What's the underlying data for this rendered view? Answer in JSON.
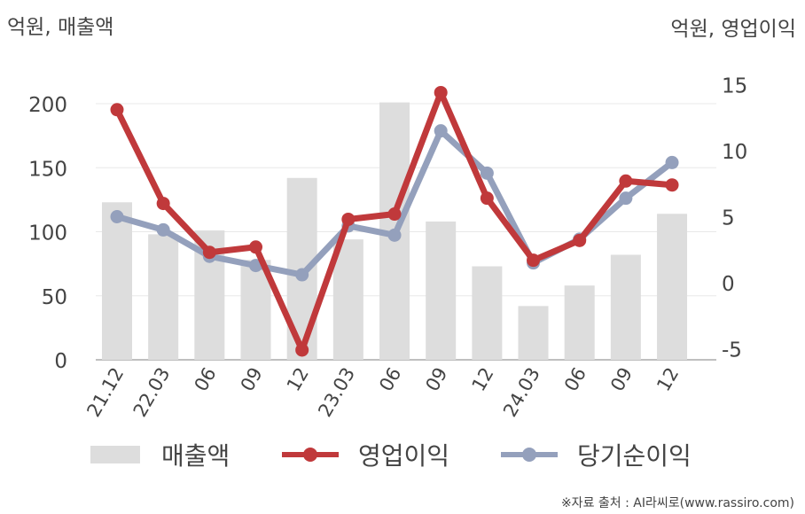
{
  "chart_data": {
    "type": "bar+line",
    "left_axis_label": "억원, 매출액",
    "right_axis_label": "억원, 영업이익",
    "categories": [
      "21.12",
      "22.03",
      "06",
      "09",
      "12",
      "23.03",
      "06",
      "09",
      "12",
      "24.03",
      "06",
      "09",
      "12"
    ],
    "left_ylim": [
      0,
      200
    ],
    "left_ticks": [
      0,
      50,
      100,
      150,
      200
    ],
    "right_ylim": [
      -5,
      15
    ],
    "right_ticks": [
      -5,
      0,
      5,
      10,
      15
    ],
    "grid": true,
    "legend_position": "bottom",
    "series": [
      {
        "name": "매출액",
        "kind": "bar",
        "axis": "left",
        "color": "#dddddd",
        "values": [
          123,
          98,
          101,
          78,
          142,
          94,
          201,
          108,
          73,
          42,
          58,
          82,
          114
        ]
      },
      {
        "name": "영업이익",
        "kind": "line",
        "axis": "right",
        "color": "#c0393b",
        "values": [
          13.1,
          6.0,
          2.3,
          2.7,
          -5.1,
          4.8,
          5.2,
          14.4,
          6.4,
          1.7,
          3.2,
          7.7,
          7.4
        ]
      },
      {
        "name": "당기순이익",
        "kind": "line",
        "axis": "right",
        "color": "#94a0bc",
        "values": [
          5.0,
          4.0,
          2.0,
          1.3,
          0.6,
          4.3,
          3.6,
          11.5,
          8.3,
          1.5,
          3.3,
          6.4,
          9.1
        ]
      }
    ],
    "source": "※자료 출처 : AI라씨로(www.rassiro.com)"
  }
}
